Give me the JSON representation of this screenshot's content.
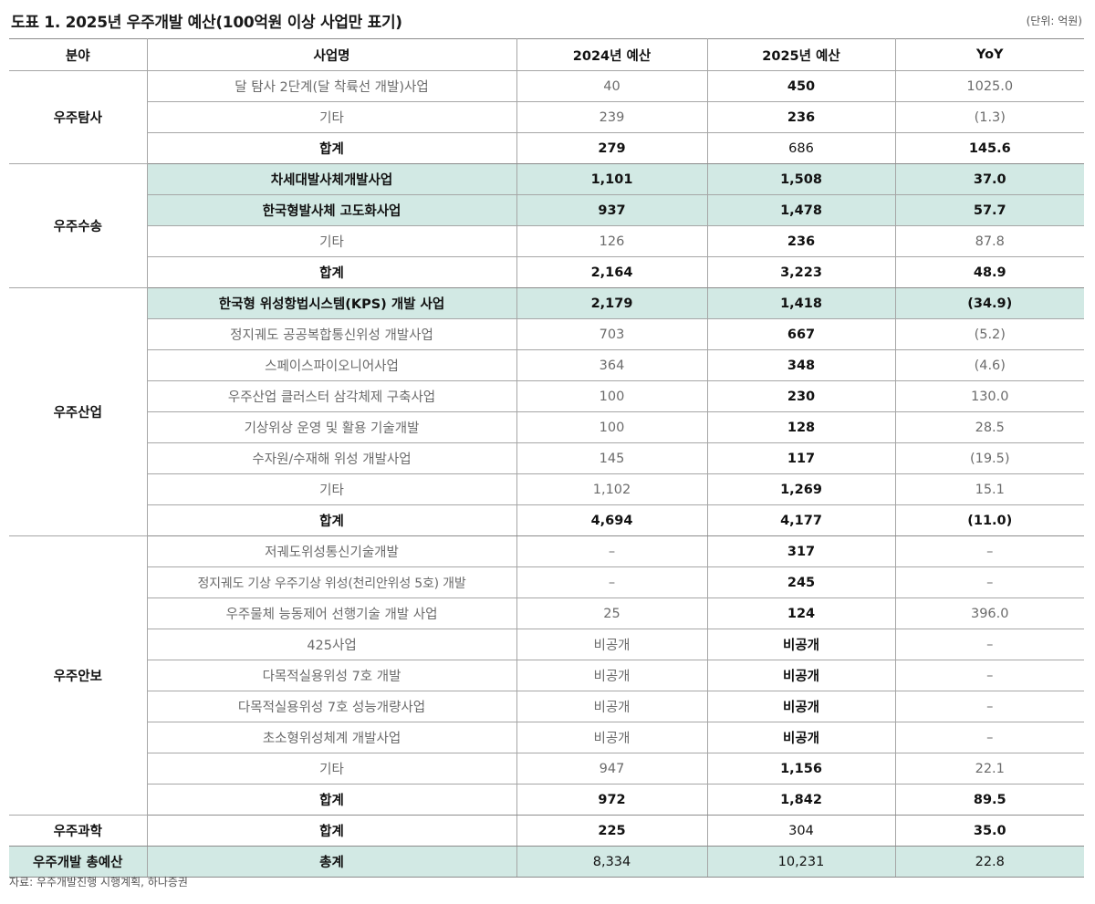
{
  "header": {
    "title": "도표 1. 2025년 우주개발 예산(100억원 이상 사업만 표기)",
    "unit": "(단위: 억원)"
  },
  "table": {
    "columns": [
      "분야",
      "사업명",
      "2024년 예산",
      "2025년 예산",
      "YoY"
    ],
    "highlight_color": "#d2e9e4",
    "groups": [
      {
        "field": "우주탐사",
        "rows": [
          {
            "name": "달 탐사 2단계(달 착륙선 개발)사업",
            "y2024": "40",
            "y2025": "450",
            "yoy": "1025.0"
          },
          {
            "name": "기타",
            "y2024": "239",
            "y2025": "236",
            "yoy": "(1.3)"
          },
          {
            "name": "합계",
            "y2024": "279",
            "y2025": "686",
            "yoy": "145.6"
          }
        ]
      },
      {
        "field": "우주수송",
        "rows": [
          {
            "name": "차세대발사체개발사업",
            "y2024": "1,101",
            "y2025": "1,508",
            "yoy": "37.0"
          },
          {
            "name": "한국형발사체 고도화사업",
            "y2024": "937",
            "y2025": "1,478",
            "yoy": "57.7"
          },
          {
            "name": "기타",
            "y2024": "126",
            "y2025": "236",
            "yoy": "87.8"
          },
          {
            "name": "합계",
            "y2024": "2,164",
            "y2025": "3,223",
            "yoy": "48.9"
          }
        ]
      },
      {
        "field": "우주산업",
        "rows": [
          {
            "name": "한국형 위성항법시스템(KPS) 개발 사업",
            "y2024": "2,179",
            "y2025": "1,418",
            "yoy": "(34.9)"
          },
          {
            "name": "정지궤도 공공복합통신위성 개발사업",
            "y2024": "703",
            "y2025": "667",
            "yoy": "(5.2)"
          },
          {
            "name": "스페이스파이오니어사업",
            "y2024": "364",
            "y2025": "348",
            "yoy": "(4.6)"
          },
          {
            "name": "우주산업 클러스터 삼각체제 구축사업",
            "y2024": "100",
            "y2025": "230",
            "yoy": "130.0"
          },
          {
            "name": "기상위상 운영 및 활용 기술개발",
            "y2024": "100",
            "y2025": "128",
            "yoy": "28.5"
          },
          {
            "name": "수자원/수재해 위성 개발사업",
            "y2024": "145",
            "y2025": "117",
            "yoy": "(19.5)"
          },
          {
            "name": "기타",
            "y2024": "1,102",
            "y2025": "1,269",
            "yoy": "15.1"
          },
          {
            "name": "합계",
            "y2024": "4,694",
            "y2025": "4,177",
            "yoy": "(11.0)"
          }
        ]
      },
      {
        "field": "우주안보",
        "rows": [
          {
            "name": "저궤도위성통신기술개발",
            "y2024": "–",
            "y2025": "317",
            "yoy": "–"
          },
          {
            "name": "정지궤도 기상 우주기상 위성(천리안위성 5호) 개발",
            "y2024": "–",
            "y2025": "245",
            "yoy": "–"
          },
          {
            "name": "우주물체 능동제어 선행기술 개발 사업",
            "y2024": "25",
            "y2025": "124",
            "yoy": "396.0"
          },
          {
            "name": "425사업",
            "y2024": "비공개",
            "y2025": "비공개",
            "yoy": "–"
          },
          {
            "name": "다목적실용위성 7호 개발",
            "y2024": "비공개",
            "y2025": "비공개",
            "yoy": "–"
          },
          {
            "name": "다목적실용위성 7호 성능개량사업",
            "y2024": "비공개",
            "y2025": "비공개",
            "yoy": "–"
          },
          {
            "name": "초소형위성체계 개발사업",
            "y2024": "비공개",
            "y2025": "비공개",
            "yoy": "–"
          },
          {
            "name": "기타",
            "y2024": "947",
            "y2025": "1,156",
            "yoy": "22.1"
          },
          {
            "name": "합계",
            "y2024": "972",
            "y2025": "1,842",
            "yoy": "89.5"
          }
        ]
      },
      {
        "field": "우주과학",
        "rows": [
          {
            "name": "합계",
            "y2024": "225",
            "y2025": "304",
            "yoy": "35.0"
          }
        ]
      },
      {
        "field": "우주개발 총예산",
        "rows": [
          {
            "name": "총계",
            "y2024": "8,334",
            "y2025": "10,231",
            "yoy": "22.8"
          }
        ]
      }
    ]
  },
  "footer": {
    "source": "자료: 우주개발진행 시행계획, 하나증권"
  }
}
